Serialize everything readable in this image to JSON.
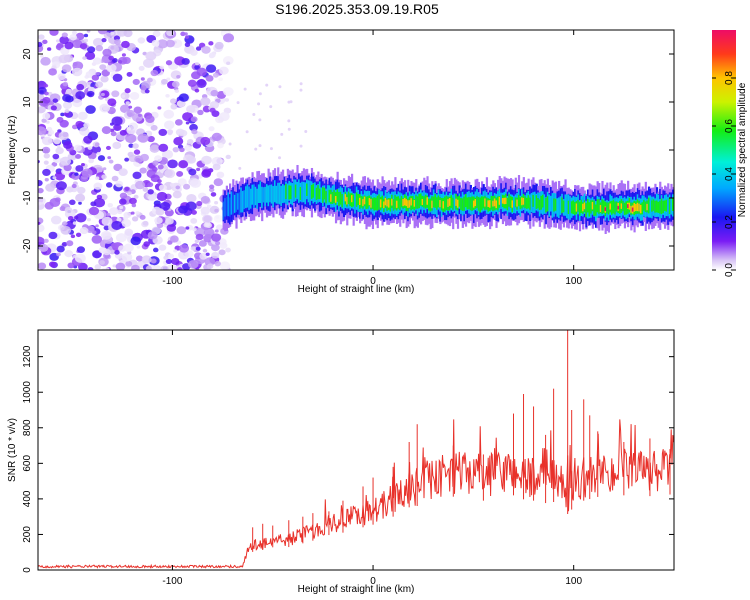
{
  "title": "S196.2025.353.09.19.R05",
  "chart_data": [
    {
      "type": "heatmap",
      "title": "",
      "xlabel": "Height of straight line (km)",
      "ylabel": "Frequency (Hz)",
      "xlim": [
        -167,
        150
      ],
      "ylim": [
        -25,
        25
      ],
      "x_ticks": [
        -100,
        0,
        100
      ],
      "y_ticks": [
        20,
        10,
        0,
        -10,
        -20
      ],
      "colorbar": {
        "label": "Normalized spectral amplitude",
        "range": [
          0,
          1
        ],
        "ticks": [
          0,
          0.2,
          0.4,
          0.6,
          0.8
        ]
      },
      "features": {
        "noise_region_x": [
          -167,
          -72
        ],
        "signal_track": {
          "x": [
            -75,
            -60,
            -45,
            -35,
            -20,
            -10,
            0,
            20,
            40,
            60,
            80,
            90,
            100,
            110,
            130,
            150
          ],
          "frequency": [
            -12,
            -9.5,
            -9,
            -8.5,
            -10,
            -10.5,
            -11,
            -11,
            -11,
            -11,
            -11,
            -11.5,
            -12,
            -12,
            -12,
            -11.5
          ],
          "peak_amplitude": [
            0.3,
            0.45,
            0.6,
            0.7,
            0.8,
            0.85,
            0.9,
            0.9,
            0.85,
            0.85,
            0.85,
            0.6,
            0.75,
            0.95,
            0.95,
            0.7
          ]
        }
      }
    },
    {
      "type": "line",
      "title": "",
      "xlabel": "Height of straight line (km)",
      "ylabel": "SNR (10 * v/v)",
      "xlim": [
        -167,
        150
      ],
      "ylim": [
        0,
        1350
      ],
      "x_ticks": [
        -100,
        0,
        100
      ],
      "y_ticks": [
        0,
        200,
        400,
        600,
        800,
        1000,
        1200
      ],
      "series": [
        {
          "color": "#e8312a",
          "x": [
            -167,
            -150,
            -130,
            -110,
            -90,
            -75,
            -65,
            -62,
            -55,
            -50,
            -45,
            -40,
            -35,
            -30,
            -25,
            -20,
            -15,
            -10,
            -5,
            0,
            5,
            10,
            15,
            18,
            20,
            22,
            25,
            30,
            35,
            40,
            45,
            50,
            55,
            60,
            65,
            70,
            75,
            80,
            85,
            90,
            95,
            97,
            100,
            105,
            110,
            115,
            120,
            125,
            130,
            135,
            140,
            145,
            150
          ],
          "y": [
            20,
            20,
            20,
            20,
            20,
            20,
            20,
            130,
            150,
            170,
            160,
            180,
            200,
            220,
            250,
            270,
            280,
            300,
            320,
            340,
            360,
            400,
            430,
            470,
            420,
            480,
            520,
            510,
            530,
            550,
            540,
            560,
            520,
            540,
            550,
            560,
            530,
            520,
            500,
            510,
            480,
            420,
            470,
            520,
            540,
            560,
            550,
            560,
            540,
            560,
            550,
            560,
            570
          ]
        }
      ],
      "spikes": {
        "x": [
          -60,
          -55,
          -50,
          -42,
          -35,
          -30,
          -22,
          -15,
          -5,
          0,
          10,
          18,
          22,
          40,
          55,
          70,
          75,
          80,
          86,
          90,
          97,
          99,
          105,
          108,
          112,
          125,
          138,
          148
        ],
        "y": [
          240,
          260,
          250,
          280,
          300,
          320,
          330,
          390,
          470,
          520,
          580,
          720,
          820,
          700,
          650,
          880,
          990,
          920,
          760,
          1020,
          1350,
          900,
          960,
          870,
          780,
          720,
          740,
          680
        ]
      }
    }
  ]
}
